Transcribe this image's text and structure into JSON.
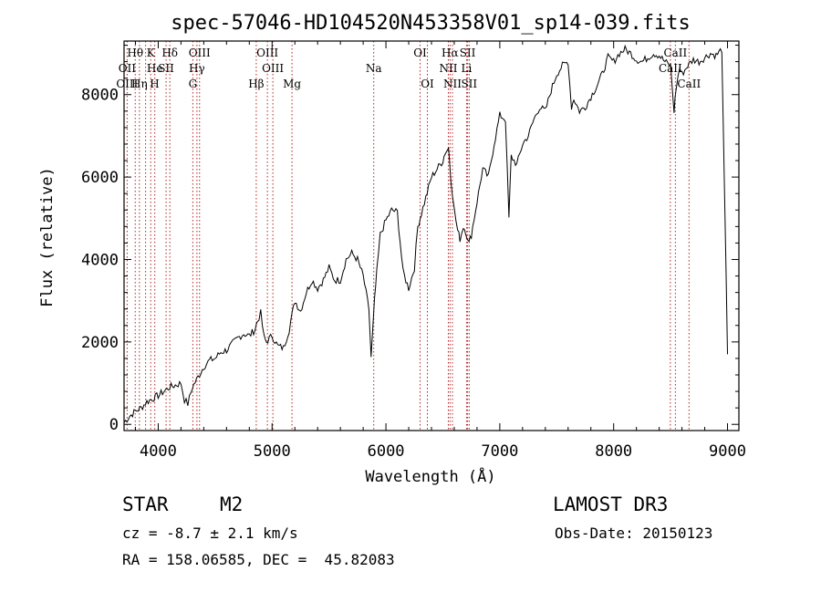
{
  "chart_data": {
    "type": "line",
    "title": "spec-57046-HD104520N453358V01_sp14-039.fits",
    "xlabel": "Wavelength (Å)",
    "ylabel": "Flux (relative)",
    "xlim": [
      3700,
      9100
    ],
    "ylim": [
      -150,
      9300
    ],
    "xticks": [
      4000,
      5000,
      6000,
      7000,
      8000,
      9000
    ],
    "yticks": [
      0,
      2000,
      4000,
      6000,
      8000
    ],
    "grid": false,
    "series": [
      {
        "name": "spectrum",
        "x": [
          3700,
          3750,
          3800,
          3850,
          3900,
          3950,
          4000,
          4050,
          4100,
          4150,
          4200,
          4230,
          4260,
          4300,
          4350,
          4400,
          4450,
          4500,
          4550,
          4600,
          4650,
          4700,
          4750,
          4800,
          4850,
          4870,
          4900,
          4930,
          4950,
          5000,
          5050,
          5100,
          5150,
          5200,
          5250,
          5300,
          5350,
          5400,
          5450,
          5500,
          5550,
          5600,
          5650,
          5700,
          5750,
          5800,
          5850,
          5870,
          5900,
          5920,
          5950,
          6000,
          6050,
          6100,
          6150,
          6200,
          6250,
          6280,
          6300,
          6350,
          6400,
          6450,
          6500,
          6520,
          6550,
          6570,
          6600,
          6630,
          6650,
          6680,
          6700,
          6730,
          6750,
          6800,
          6850,
          6900,
          6950,
          7000,
          7050,
          7080,
          7100,
          7150,
          7200,
          7250,
          7300,
          7350,
          7400,
          7450,
          7500,
          7550,
          7600,
          7630,
          7650,
          7700,
          7750,
          7800,
          7850,
          7900,
          7950,
          8000,
          8050,
          8100,
          8150,
          8200,
          8250,
          8300,
          8350,
          8400,
          8450,
          8500,
          8530,
          8550,
          8580,
          8600,
          8650,
          8700,
          8750,
          8800,
          8850,
          8900,
          8950,
          9000
        ],
        "y": [
          50,
          200,
          320,
          400,
          550,
          620,
          700,
          800,
          900,
          950,
          1000,
          600,
          500,
          900,
          1150,
          1400,
          1550,
          1600,
          1750,
          1800,
          1950,
          2100,
          2200,
          2150,
          2300,
          2500,
          2700,
          2100,
          2000,
          2150,
          1900,
          1850,
          2300,
          3000,
          2750,
          3200,
          3500,
          3300,
          3500,
          3800,
          3500,
          3500,
          4000,
          4150,
          4000,
          3600,
          2800,
          1600,
          3000,
          3700,
          4600,
          4950,
          5200,
          5150,
          3700,
          3300,
          3800,
          4800,
          5000,
          5500,
          6000,
          6200,
          6400,
          6600,
          6700,
          6000,
          5200,
          4700,
          4500,
          4800,
          4700,
          4400,
          4600,
          5400,
          6200,
          6000,
          6800,
          7500,
          7400,
          5000,
          6500,
          6300,
          6800,
          7000,
          7400,
          7700,
          7600,
          8100,
          8500,
          8700,
          8800,
          7700,
          7900,
          7600,
          7700,
          7950,
          8200,
          8500,
          8900,
          8800,
          9000,
          9100,
          9000,
          8850,
          8800,
          8900,
          9000,
          8950,
          8800,
          8700,
          7600,
          8200,
          8650,
          8500,
          8700,
          8850,
          8800,
          8900,
          9000,
          8950,
          9100,
          1700
        ]
      }
    ],
    "line_markers": [
      {
        "label": "Hθ",
        "x": 3798,
        "row": 0
      },
      {
        "label": "OII",
        "x": 3727,
        "row": 1
      },
      {
        "label": "OIII",
        "x": 3727,
        "row": 2
      },
      {
        "label": "He",
        "x": 3970,
        "row": 1
      },
      {
        "label": "Hη",
        "x": 3835,
        "row": 2
      },
      {
        "label": "K",
        "x": 3934,
        "row": 0
      },
      {
        "label": "SII",
        "x": 4069,
        "row": 1
      },
      {
        "label": "H",
        "x": 3968,
        "row": 2
      },
      {
        "label": "Hδ",
        "x": 4102,
        "row": 0
      },
      {
        "label": "OIII",
        "x": 4363,
        "row": 0
      },
      {
        "label": "Hγ",
        "x": 4340,
        "row": 1
      },
      {
        "label": "G",
        "x": 4304,
        "row": 2
      },
      {
        "label": "Hβ",
        "x": 4861,
        "row": 2
      },
      {
        "label": "OIII",
        "x": 4959,
        "row": 0
      },
      {
        "label": "OIII",
        "x": 5007,
        "row": 1
      },
      {
        "label": "Mg",
        "x": 5175,
        "row": 2
      },
      {
        "label": "Na",
        "x": 5893,
        "row": 1
      },
      {
        "label": "OI",
        "x": 6300,
        "row": 0
      },
      {
        "label": "OI",
        "x": 6364,
        "row": 2
      },
      {
        "label": "Hα",
        "x": 6563,
        "row": 0
      },
      {
        "label": "NII",
        "x": 6548,
        "row": 1
      },
      {
        "label": "NII",
        "x": 6584,
        "row": 2
      },
      {
        "label": "SII",
        "x": 6717,
        "row": 0
      },
      {
        "label": "Li",
        "x": 6708,
        "row": 1
      },
      {
        "label": "SII",
        "x": 6731,
        "row": 2
      },
      {
        "label": "CaII",
        "x": 8542,
        "row": 0
      },
      {
        "label": "CaII",
        "x": 8498,
        "row": 1
      },
      {
        "label": "CaII",
        "x": 8662,
        "row": 2
      }
    ],
    "dotted_lines_x": [
      3727,
      3798,
      3835,
      3889,
      3934,
      3970,
      4069,
      4102,
      4304,
      4340,
      4363,
      4861,
      4959,
      5007,
      5175,
      5893,
      6300,
      6364,
      6548,
      6563,
      6584,
      6708,
      6717,
      6731,
      8498,
      8542,
      8662
    ]
  },
  "info": {
    "object_class": "STAR",
    "subclass": "M2",
    "survey": "LAMOST DR3",
    "cz": "cz = -8.7 ± 2.1 km/s",
    "obs_date": "Obs-Date: 20150123",
    "radec": "RA = 158.06585, DEC =  45.82083"
  },
  "colors": {
    "spectrum": "#000000",
    "marker_line": "#b22222",
    "axis": "#000000"
  }
}
